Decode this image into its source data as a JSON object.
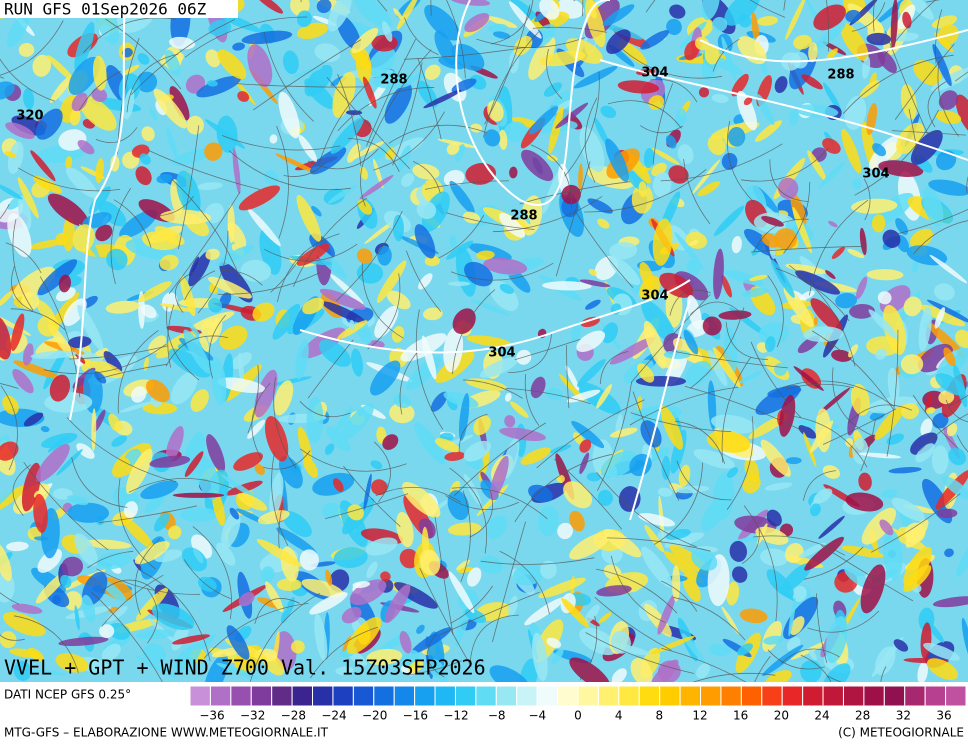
{
  "header": {
    "run": "RUN GFS 01Sep2026 06Z"
  },
  "contour_labels": [
    "320",
    "288",
    "304",
    "288",
    "304",
    "288",
    "304",
    "304"
  ],
  "map_title": "VVEL + GPT + WIND Z700 Val. 15Z03SEP2026",
  "legend": {
    "source": "DATI NCEP GFS 0.25°",
    "colors": [
      "#c890d8",
      "#b070c8",
      "#9850b0",
      "#803c9c",
      "#602c88",
      "#3c2490",
      "#2830a8",
      "#1c40c0",
      "#1858d4",
      "#1470e0",
      "#1488ea",
      "#18a0f0",
      "#20b8f4",
      "#30ccf4",
      "#60dcf4",
      "#98e8f4",
      "#c8f4f8",
      "#f0fcfc",
      "#fffcd0",
      "#fff8a0",
      "#fff070",
      "#ffe840",
      "#ffdc10",
      "#ffcc00",
      "#ffb400",
      "#ff9c00",
      "#ff8000",
      "#ff6000",
      "#f84018",
      "#e82828",
      "#d01c30",
      "#c01838",
      "#b01440",
      "#a01048",
      "#901050",
      "#a82870",
      "#b84090",
      "#c050a0"
    ],
    "labels": [
      "−36",
      "−32",
      "−28",
      "−24",
      "−20",
      "−16",
      "−12",
      "−8",
      "−4",
      "0",
      "4",
      "8",
      "12",
      "16",
      "20",
      "24",
      "28",
      "32",
      "36"
    ]
  },
  "footer": {
    "left": "MTG-GFS – ELABORAZIONE WWW.METEOGIORNALE.IT",
    "right": "(C) METEOGIORNALE"
  }
}
